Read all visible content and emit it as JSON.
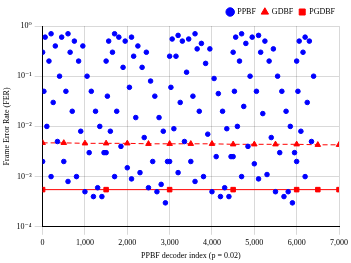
{
  "chart_data": {
    "type": "scatter",
    "x_label": "PPBF decoder index (p = 0.02)",
    "y_label": "Frame Error Rate (FER)",
    "log": "y",
    "grid": true,
    "legend": "top-right",
    "xlim": [
      0,
      7000
    ],
    "xticks": [
      0,
      {
        "value": 1000,
        "label": "1,000"
      },
      {
        "value": 2000,
        "label": "2,000"
      },
      {
        "value": 3000,
        "label": "3,000"
      },
      {
        "value": 4000,
        "label": "4,000"
      },
      {
        "value": 5000,
        "label": "5,000"
      },
      {
        "value": 6000,
        "label": "6,000"
      },
      {
        "value": 7000,
        "label": "7,000"
      }
    ],
    "ylim": [
      0.0001,
      1
    ],
    "yticks": [
      {
        "value": 0.0001,
        "label": "10⁻⁴"
      },
      {
        "value": 0.001,
        "label": "10⁻³"
      },
      {
        "value": 0.01,
        "label": "10⁻²"
      },
      {
        "value": 0.1,
        "label": "10⁻¹"
      },
      {
        "value": 1,
        "label": "10⁰"
      }
    ],
    "series": [
      {
        "name": "PPBF",
        "color": "#0000ff",
        "marker": "circle",
        "line_style": "none",
        "x": [
          0,
          0,
          30,
          60,
          100,
          150,
          200,
          200,
          250,
          300,
          350,
          400,
          450,
          500,
          550,
          600,
          600,
          650,
          700,
          750,
          800,
          850,
          900,
          950,
          1000,
          1050,
          1100,
          1150,
          1200,
          1250,
          1300,
          1350,
          1400,
          1450,
          1500,
          1500,
          1530,
          1560,
          1600,
          1650,
          1700,
          1700,
          1750,
          1800,
          1850,
          1900,
          1950,
          2000,
          2050,
          2100,
          2100,
          2150,
          2200,
          2250,
          2300,
          2350,
          2400,
          2450,
          2500,
          2550,
          2600,
          2650,
          2700,
          2750,
          2800,
          2850,
          2900,
          2950,
          3000,
          3000,
          3030,
          3060,
          3100,
          3150,
          3200,
          3200,
          3250,
          3300,
          3350,
          3400,
          3450,
          3500,
          3550,
          3600,
          3600,
          3650,
          3700,
          3750,
          3800,
          3850,
          3900,
          3950,
          4000,
          4050,
          4100,
          4150,
          4200,
          4250,
          4300,
          4350,
          4400,
          4450,
          4500,
          4500,
          4530,
          4560,
          4600,
          4650,
          4700,
          4700,
          4750,
          4800,
          4850,
          4900,
          4950,
          5000,
          5050,
          5100,
          5100,
          5150,
          5200,
          5250,
          5300,
          5350,
          5400,
          5450,
          5500,
          5550,
          5600,
          5650,
          5700,
          5750,
          5800,
          5850,
          5900,
          5950,
          6000,
          6000,
          6030,
          6060,
          6100,
          6150,
          6200,
          6200,
          6250,
          6300,
          6350,
          6400
        ],
        "values": [
          0.3,
          0.002,
          0.05,
          0.6,
          0.01,
          0.2,
          0.7,
          0.001,
          0.03,
          0.4,
          0.005,
          0.1,
          0.6,
          0.002,
          0.05,
          0.7,
          0.0008,
          0.3,
          0.02,
          0.5,
          0.001,
          0.2,
          0.008,
          0.4,
          0.0005,
          0.1,
          0.003,
          0.05,
          0.0004,
          0.02,
          0.0006,
          0.01,
          0.0004,
          0.003,
          0.2,
          0.003,
          0.04,
          0.5,
          0.008,
          0.3,
          0.7,
          0.001,
          0.02,
          0.6,
          0.004,
          0.15,
          0.5,
          0.0015,
          0.06,
          0.6,
          0.0009,
          0.25,
          0.015,
          0.4,
          0.0012,
          0.15,
          0.006,
          0.3,
          0.0006,
          0.08,
          0.002,
          0.04,
          0.0005,
          0.015,
          0.0007,
          0.008,
          0.0003,
          0.002,
          0.25,
          0.002,
          0.06,
          0.55,
          0.009,
          0.25,
          0.65,
          0.0012,
          0.03,
          0.5,
          0.005,
          0.12,
          0.55,
          0.002,
          0.04,
          0.7,
          0.0008,
          0.35,
          0.02,
          0.45,
          0.001,
          0.18,
          0.007,
          0.35,
          0.0005,
          0.09,
          0.0025,
          0.045,
          0.0004,
          0.02,
          0.0006,
          0.009,
          0.0004,
          0.0025,
          0.3,
          0.0025,
          0.05,
          0.6,
          0.01,
          0.2,
          0.7,
          0.001,
          0.025,
          0.45,
          0.004,
          0.1,
          0.6,
          0.0018,
          0.05,
          0.65,
          0.0009,
          0.3,
          0.018,
          0.5,
          0.0011,
          0.2,
          0.006,
          0.35,
          0.0005,
          0.1,
          0.003,
          0.05,
          0.0004,
          0.02,
          0.0005,
          0.01,
          0.0003,
          0.003,
          0.2,
          0.002,
          0.05,
          0.5,
          0.008,
          0.3,
          0.6,
          0.001,
          0.03,
          0.5,
          0.005,
          0.1
        ]
      },
      {
        "name": "GDBF",
        "color": "#ff0000",
        "marker": "triangle",
        "line_style": "dashed",
        "x": [
          0,
          500,
          1000,
          1500,
          2000,
          2500,
          3000,
          3500,
          4000,
          4500,
          5000,
          5500,
          6000,
          6500,
          7000
        ],
        "values": [
          0.0047,
          0.0047,
          0.0046,
          0.0046,
          0.0046,
          0.0045,
          0.0045,
          0.0045,
          0.0045,
          0.0044,
          0.0044,
          0.0044,
          0.0044,
          0.0043,
          0.0043
        ]
      },
      {
        "name": "PGDBF",
        "color": "#ff0000",
        "marker": "square",
        "line_style": "solid",
        "x": [
          0,
          1500,
          3000,
          4500,
          6000,
          6500,
          7000
        ],
        "values": [
          0.00055,
          0.00055,
          0.00055,
          0.00055,
          0.00055,
          0.00055,
          0.00055
        ]
      }
    ]
  }
}
